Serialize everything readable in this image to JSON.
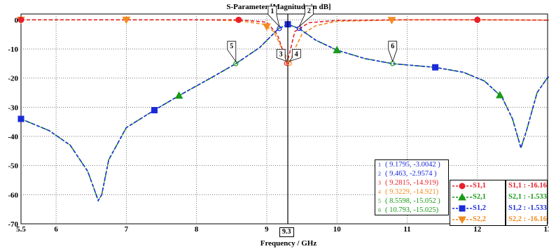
{
  "chart_data": {
    "type": "line",
    "title": "S-Parameter [Magnitude in dB]",
    "xlabel": "Frequency / GHz",
    "ylabel": "",
    "xlim": [
      5.5,
      13.0
    ],
    "ylim": [
      -70,
      2
    ],
    "xticks": [
      5.5,
      6,
      7,
      8,
      9,
      10,
      11,
      12,
      13
    ],
    "yticks": [
      0,
      -10,
      -20,
      -30,
      -40,
      -50,
      -60,
      -70
    ],
    "grid": true,
    "legend_position": "bottom-right",
    "cursor_x": 9.3,
    "cursor_label": "9.3",
    "series": [
      {
        "name": "S1,1",
        "color": "#e8202a",
        "marker": "circle",
        "x": [
          5.5,
          7,
          8,
          8.6,
          9.0,
          9.15,
          9.25,
          9.2815,
          9.32,
          9.4,
          9.6,
          10,
          11,
          12,
          13,
          13.2,
          13.6
        ],
        "y": [
          0,
          0,
          0,
          0,
          -0.8,
          -5,
          -12,
          -14.919,
          -12,
          -4,
          -1,
          -0.2,
          0,
          0,
          -0.1,
          -0.3,
          -0.2
        ],
        "markers_x": [
          5.5,
          8.6,
          12.0
        ]
      },
      {
        "name": "S2,1",
        "color": "#1a9a1a",
        "marker": "triangle-up",
        "x": [
          5.5,
          5.9,
          6.2,
          6.45,
          6.6,
          6.65,
          6.75,
          7.0,
          7.4,
          7.75,
          8.2,
          8.56,
          8.9,
          9.17,
          9.3,
          9.46,
          9.7,
          10.0,
          10.4,
          10.79,
          11.4,
          11.8,
          12.1,
          12.35,
          12.5,
          12.62,
          12.7,
          12.85,
          13.0,
          13.05,
          13.12,
          13.2,
          13.25,
          13.3,
          13.35,
          13.45,
          13.6
        ],
        "y": [
          -34,
          -38,
          -43,
          -52,
          -62,
          -60,
          -48,
          -37,
          -31,
          -26,
          -20,
          -15.05,
          -9.5,
          -3,
          -1.53,
          -3,
          -7,
          -10.4,
          -13.3,
          -15.03,
          -16.3,
          -18,
          -21,
          -26.5,
          -34,
          -44,
          -38,
          -25,
          -19.8,
          -19.5,
          -18.3,
          -18.5,
          -24,
          -24.8,
          -23,
          -19,
          -15
        ],
        "markers_x": [
          7.75,
          10.0,
          12.32
        ]
      },
      {
        "name": "S1,2",
        "color": "#1a2bd8",
        "marker": "square",
        "x": [
          5.5,
          5.9,
          6.2,
          6.45,
          6.6,
          6.65,
          6.75,
          7.0,
          7.4,
          7.75,
          8.2,
          8.56,
          8.9,
          9.17,
          9.3,
          9.46,
          9.7,
          10.0,
          10.4,
          10.79,
          11.4,
          11.8,
          12.1,
          12.35,
          12.5,
          12.62,
          12.7,
          12.85,
          13.0,
          13.05,
          13.12,
          13.2,
          13.25,
          13.3,
          13.35,
          13.45,
          13.6
        ],
        "y": [
          -34,
          -38,
          -43,
          -52,
          -62,
          -60,
          -48,
          -37,
          -31,
          -26,
          -20,
          -15.05,
          -9.5,
          -3,
          -1.53,
          -3,
          -7,
          -10.4,
          -13.3,
          -15.03,
          -16.3,
          -18,
          -21,
          -26.5,
          -34,
          -44,
          -38,
          -25,
          -19.8,
          -19.5,
          -18.3,
          -18.5,
          -24,
          -24.8,
          -23,
          -19,
          -15
        ],
        "markers_x": [
          5.5,
          7.4,
          9.3,
          11.4,
          13.12
        ]
      },
      {
        "name": "S2,2",
        "color": "#f28a1e",
        "marker": "triangle-down",
        "x": [
          5.5,
          7,
          8,
          8.6,
          8.95,
          9.1,
          9.2,
          9.3229,
          9.4,
          9.5,
          9.7,
          10,
          11,
          12,
          13,
          13.2,
          13.6
        ],
        "y": [
          0,
          0,
          0,
          -0.3,
          -1.5,
          -4,
          -9,
          -14.921,
          -10,
          -5,
          -2,
          -0.5,
          0,
          0,
          -0.1,
          -0.3,
          -0.2
        ],
        "markers_x": [
          5.5,
          7.0,
          9.0,
          10.78,
          13.2
        ]
      }
    ],
    "markers": [
      {
        "id": "1",
        "x": 9.1795,
        "y": -3.0042,
        "label": "( 9.1795, -3.0042 )",
        "color": "#1a2bd8"
      },
      {
        "id": "2",
        "x": 9.463,
        "y": -2.9574,
        "label": "( 9.463, -2.9574 )",
        "color": "#1a2bd8"
      },
      {
        "id": "3",
        "x": 9.2815,
        "y": -14.919,
        "label": "( 9.2815, -14.919)",
        "color": "#e8202a"
      },
      {
        "id": "4",
        "x": 9.3229,
        "y": -14.921,
        "label": "( 9.3229, -14.921)",
        "color": "#f28a1e"
      },
      {
        "id": "5",
        "x": 8.5598,
        "y": -15.052,
        "label": "( 8.5598, -15.052 )",
        "color": "#1a9a1a"
      },
      {
        "id": "6",
        "x": 10.793,
        "y": -15.025,
        "label": "( 10.793, -15.025)",
        "color": "#1a9a1a"
      }
    ],
    "cursor_values": [
      {
        "label": "S1,1 : -16.166585",
        "color": "#e8202a"
      },
      {
        "label": "S2,1 : -1.5333362",
        "color": "#1a9a1a"
      },
      {
        "label": "S1,2 : -1.5333375",
        "color": "#1a2bd8"
      },
      {
        "label": "S2,2 : -16.16651",
        "color": "#f28a1e"
      }
    ]
  }
}
